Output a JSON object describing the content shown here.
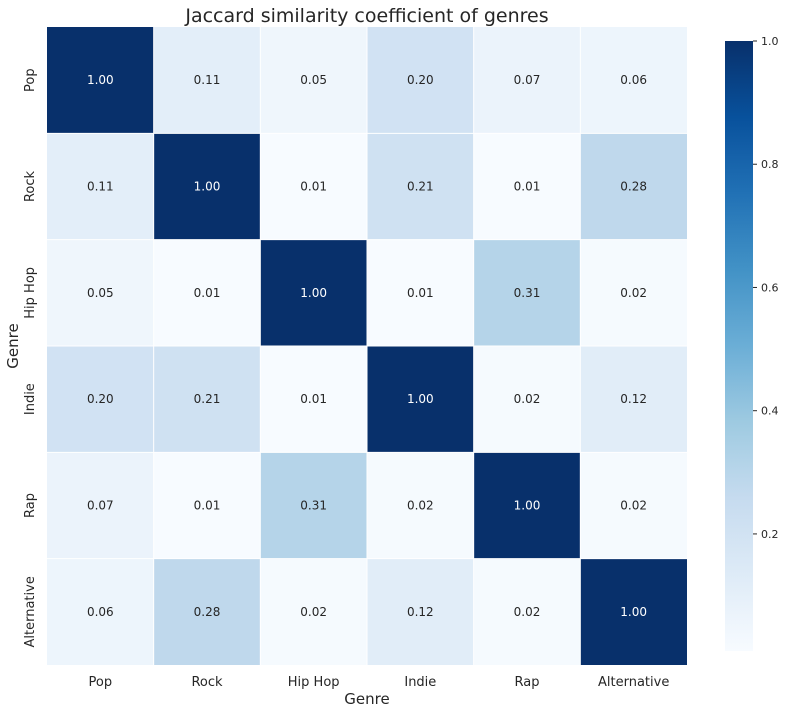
{
  "chart_data": {
    "type": "heatmap",
    "title": "Jaccard similarity coefficient of genres",
    "xlabel": "Genre",
    "ylabel": "Genre",
    "x_categories": [
      "Pop",
      "Rock",
      "Hip Hop",
      "Indie",
      "Rap",
      "Alternative"
    ],
    "y_categories": [
      "Pop",
      "Rock",
      "Hip Hop",
      "Indie",
      "Rap",
      "Alternative"
    ],
    "values": [
      [
        1.0,
        0.11,
        0.05,
        0.2,
        0.07,
        0.06
      ],
      [
        0.11,
        1.0,
        0.01,
        0.21,
        0.01,
        0.28
      ],
      [
        0.05,
        0.01,
        1.0,
        0.01,
        0.31,
        0.02
      ],
      [
        0.2,
        0.21,
        0.01,
        1.0,
        0.02,
        0.12
      ],
      [
        0.07,
        0.01,
        0.31,
        0.02,
        1.0,
        0.02
      ],
      [
        0.06,
        0.28,
        0.02,
        0.12,
        0.02,
        1.0
      ]
    ],
    "value_format": "0.00",
    "colormap": "Blues",
    "color_range": [
      0.01,
      1.0
    ],
    "colorbar_ticks": [
      0.2,
      0.4,
      0.6,
      0.8,
      1.0
    ],
    "colorbar_tick_labels": [
      "0.2",
      "0.4",
      "0.6",
      "0.8",
      "1.0"
    ],
    "grid": true,
    "grid_color": "#ffffff"
  }
}
